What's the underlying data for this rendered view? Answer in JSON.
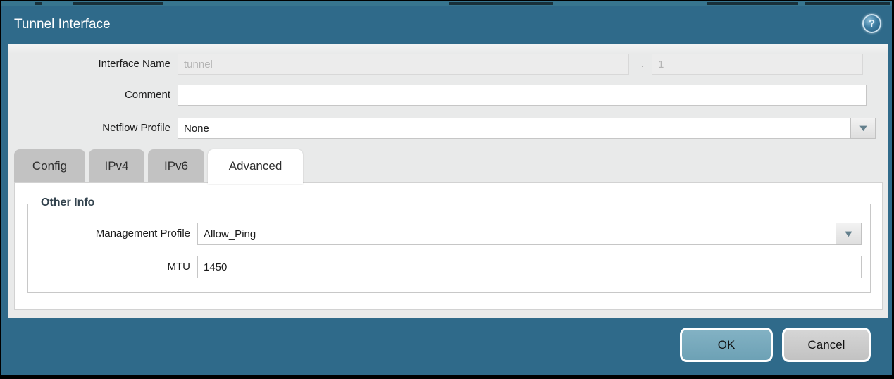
{
  "window": {
    "title": "Tunnel Interface",
    "help_icon_glyph": "?"
  },
  "form": {
    "interface_name": {
      "label": "Interface Name",
      "value": "tunnel",
      "separator": ".",
      "sub_value": "1"
    },
    "comment": {
      "label": "Comment",
      "value": ""
    },
    "netflow_profile": {
      "label": "Netflow Profile",
      "value": "None",
      "dropdown_icon_glyph": "▼"
    }
  },
  "tabs": [
    {
      "label": "Config"
    },
    {
      "label": "IPv4"
    },
    {
      "label": "IPv6"
    },
    {
      "label": "Advanced"
    }
  ],
  "active_tab": "Advanced",
  "advanced_panel": {
    "group_title": "Other Info",
    "management_profile": {
      "label": "Management Profile",
      "value": "Allow_Ping",
      "dropdown_icon_glyph": "▼"
    },
    "mtu": {
      "label": "MTU",
      "value": "1450"
    }
  },
  "footer": {
    "ok_label": "OK",
    "cancel_label": "Cancel"
  },
  "colors": {
    "titlebar_teal": "#2f6a8a",
    "body_gray": "#e9eaea",
    "ok_button_teal": "#74a5b8",
    "cancel_button_gray": "#c9c9c9",
    "dropdown_arrow": "#64808d",
    "group_title_text": "#33434e"
  }
}
